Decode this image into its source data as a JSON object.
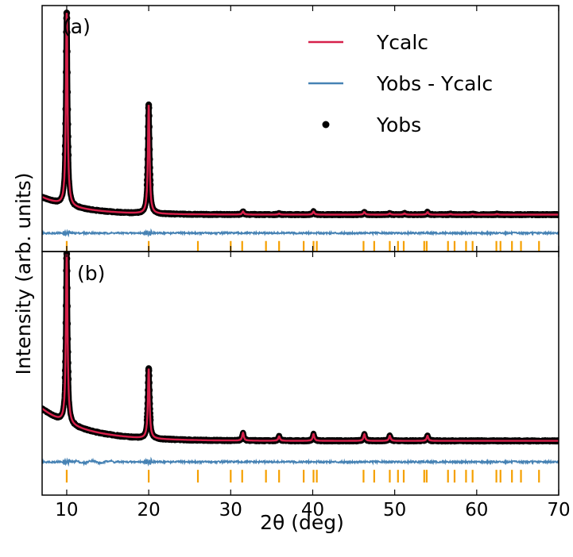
{
  "figure": {
    "xlabel": "2θ (deg)",
    "ylabel": "Intensity (arb. units)"
  },
  "legend": {
    "position": "top-right of panel (a)",
    "entries": [
      {
        "label": "Ycalc",
        "kind": "line",
        "color": "#d6204a"
      },
      {
        "label": "Yobs - Ycalc",
        "kind": "line",
        "color": "#4682b4"
      },
      {
        "label": "Yobs",
        "kind": "marker",
        "color": "#000000"
      }
    ]
  },
  "colors": {
    "calc": "#d6204a",
    "diff": "#4682b4",
    "obs": "#000000",
    "ticks": "#f5a000"
  },
  "chart_data": [
    {
      "type": "line",
      "panel_label": "(a)",
      "xlim": [
        7,
        70
      ],
      "ylim": [
        -0.12,
        1.08
      ],
      "xticks": [
        10,
        20,
        30,
        40,
        50,
        60,
        70
      ],
      "y_tick_labels_shown": false,
      "grid": false,
      "baseline": 0.06,
      "background_decay": {
        "amp": 0.085,
        "rate": 0.22
      },
      "peaks": [
        {
          "x": 10.0,
          "y": 1.0
        },
        {
          "x": 20.0,
          "y": 0.59
        },
        {
          "x": 31.5,
          "y": 0.075
        },
        {
          "x": 35.9,
          "y": 0.065
        },
        {
          "x": 40.1,
          "y": 0.075
        },
        {
          "x": 46.3,
          "y": 0.072
        },
        {
          "x": 49.4,
          "y": 0.066
        },
        {
          "x": 51.2,
          "y": 0.066
        },
        {
          "x": 54.0,
          "y": 0.072
        },
        {
          "x": 56.8,
          "y": 0.063
        },
        {
          "x": 59.5,
          "y": 0.063
        },
        {
          "x": 62.5,
          "y": 0.063
        }
      ],
      "difference_offset": -0.03,
      "reflection_markers_at": [
        10.0,
        20.0,
        26.0,
        30.0,
        31.4,
        34.3,
        35.9,
        38.9,
        40.1,
        40.5,
        46.2,
        47.5,
        49.4,
        50.4,
        51.1,
        53.6,
        53.9,
        56.5,
        57.3,
        58.7,
        59.5,
        62.4,
        62.9,
        64.3,
        65.4,
        67.6
      ],
      "series": [
        {
          "name": "Ycalc",
          "color": "#d6204a"
        },
        {
          "name": "Yobs - Ycalc",
          "color": "#4682b4"
        },
        {
          "name": "Yobs",
          "color": "#000000"
        }
      ]
    },
    {
      "type": "line",
      "panel_label": "(b)",
      "xlim": [
        7,
        70
      ],
      "ylim": [
        -0.17,
        0.93
      ],
      "xticks": [
        10,
        20,
        30,
        40,
        50,
        60,
        70
      ],
      "y_tick_labels_shown": false,
      "grid": false,
      "baseline": 0.075,
      "background_decay": {
        "amp": 0.145,
        "rate": 0.2
      },
      "peaks": [
        {
          "x": 10.0,
          "y": 0.84
        },
        {
          "x": 20.0,
          "y": 0.39
        },
        {
          "x": 31.5,
          "y": 0.11
        },
        {
          "x": 35.9,
          "y": 0.095
        },
        {
          "x": 40.1,
          "y": 0.105
        },
        {
          "x": 46.3,
          "y": 0.105
        },
        {
          "x": 49.4,
          "y": 0.098
        },
        {
          "x": 54.0,
          "y": 0.098
        }
      ],
      "difference_offset": -0.02,
      "reflection_markers_at": [
        10.0,
        20.0,
        26.0,
        30.0,
        31.4,
        34.3,
        35.9,
        38.9,
        40.1,
        40.5,
        46.2,
        47.5,
        49.4,
        50.4,
        51.1,
        53.6,
        53.9,
        56.5,
        57.3,
        58.7,
        59.5,
        62.4,
        62.9,
        64.3,
        65.4,
        67.6
      ],
      "series": [
        {
          "name": "Ycalc",
          "color": "#d6204a"
        },
        {
          "name": "Yobs - Ycalc",
          "color": "#4682b4"
        },
        {
          "name": "Yobs",
          "color": "#000000"
        }
      ]
    }
  ]
}
